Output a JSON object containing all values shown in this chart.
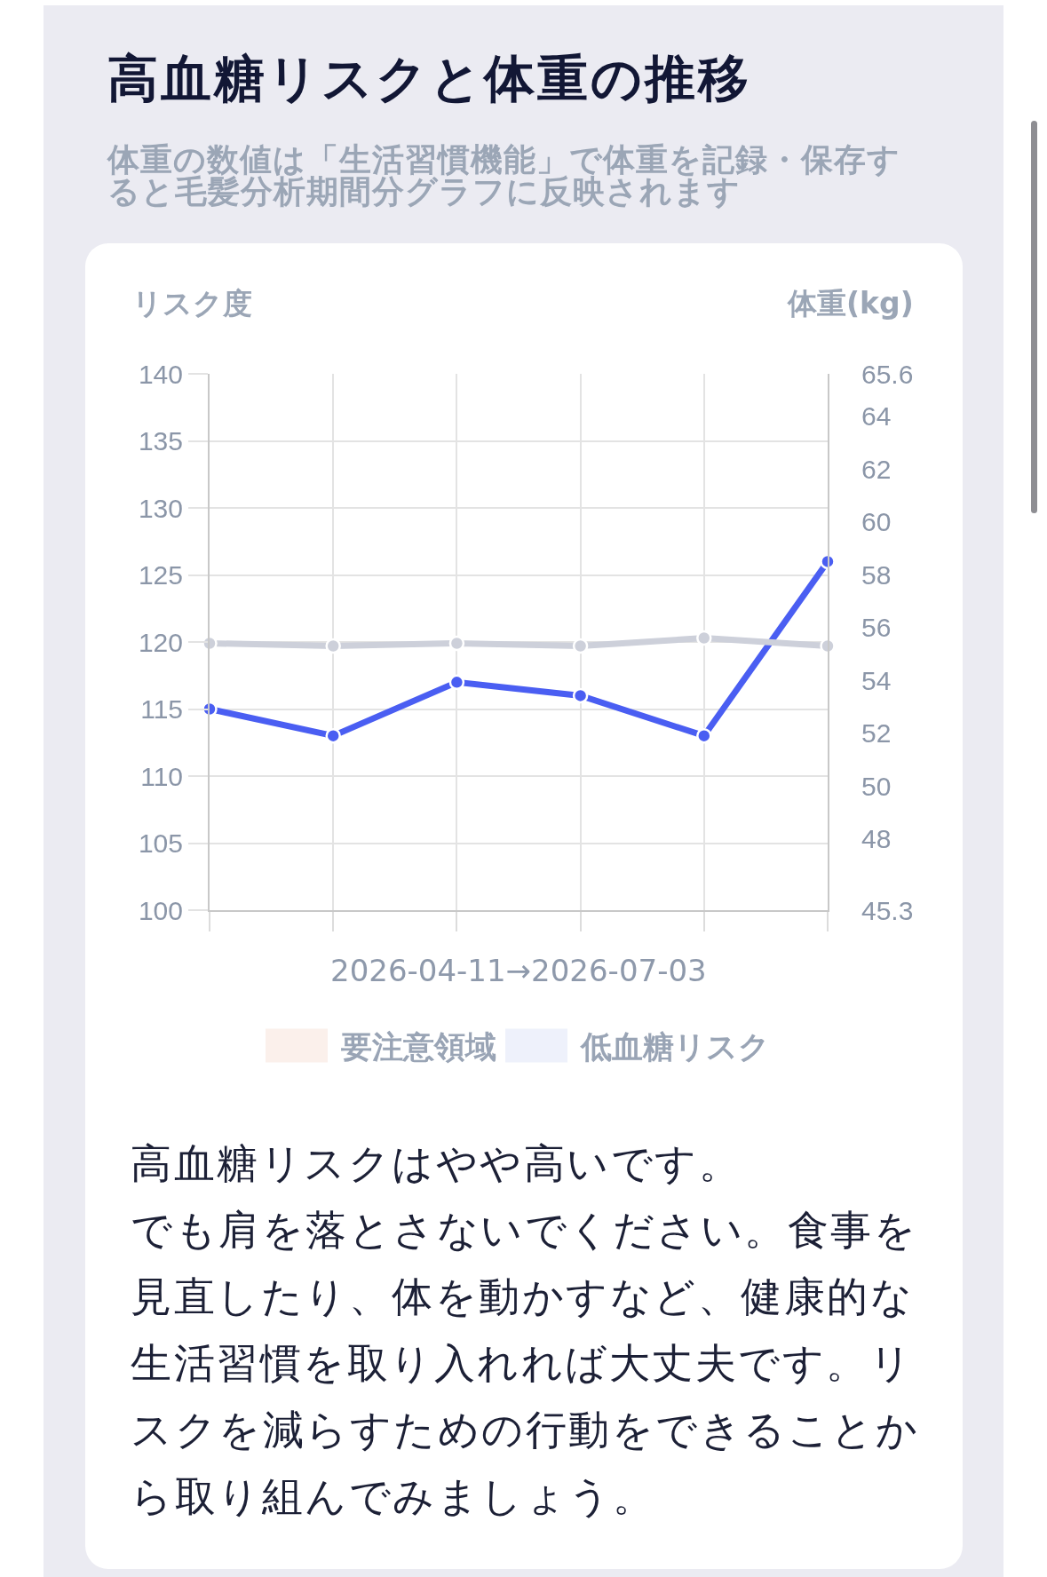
{
  "chart_data": {
    "type": "line",
    "title": "高血糖リスクと体重の推移",
    "subtitle": "体重の数値は「生活習慣機能」で体重を記録・保存すると毛髪分析期間分グラフに反映されます",
    "xlabel": "2026-04-11→2026-07-03",
    "ylabel": "リスク度",
    "y2label": "体重(kg)",
    "categories": [
      null,
      null,
      null,
      null,
      null,
      null
    ],
    "series": [
      {
        "type": "line",
        "color": "#cdd0da",
        "axis": "y2",
        "values": [
          55.4,
          55.3,
          55.4,
          55.3,
          55.6,
          55.3
        ]
      },
      {
        "type": "line",
        "color": "#4a5ef2",
        "values": [
          115,
          113,
          117,
          116,
          113,
          126
        ]
      },
      {
        "type": "area",
        "name": "要注意領域",
        "color": "#fbf0eb",
        "values": [
          null,
          null,
          null,
          null,
          null,
          null
        ]
      },
      {
        "type": "area",
        "name": "低血糖リスク",
        "color": "#eef1fb",
        "values": [
          null,
          null,
          null,
          null,
          null,
          null
        ]
      }
    ],
    "ylim": [
      100,
      140
    ],
    "yticks": [
      100,
      105,
      110,
      115,
      120,
      125,
      130,
      135,
      140
    ],
    "y2lim": [
      45.3,
      65.6
    ],
    "y2ticks": [
      45.3,
      48,
      50,
      52,
      54,
      56,
      58,
      60,
      62,
      64,
      65.6
    ],
    "grid": true,
    "legend": "bottom",
    "marker": "circle",
    "line_style": "solid",
    "annotations": [
      "高血糖リスクはやや高いです。",
      "でも肩を落とさないでください。食事を見直したり、体を動かすなど、健康的な生活習慣を取り入れれば大丈夫です。リスクを減らすための行動をできることから取り組んでみましょう。"
    ]
  }
}
